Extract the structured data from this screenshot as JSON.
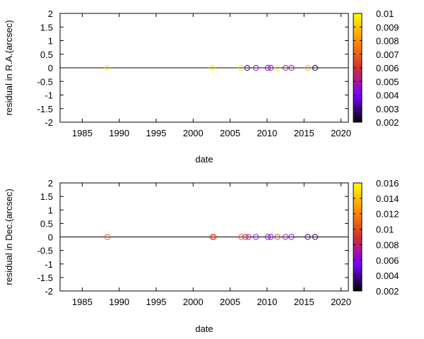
{
  "chart_data": [
    {
      "type": "scatter",
      "title": "",
      "xlabel": "date",
      "ylabel": "residual in R.A.(arcsec)",
      "xlim": [
        1982.0,
        2021.0
      ],
      "ylim": [
        -2,
        2
      ],
      "x_ticks": [
        "1985",
        "1990",
        "1995",
        "2000",
        "2005",
        "2010",
        "2015",
        "2020"
      ],
      "y_ticks": [
        "2",
        "1.5",
        "1",
        "0.5",
        "0",
        "-0.5",
        "-1",
        "-1.5",
        "-2"
      ],
      "grid": false,
      "colorbar": {
        "range": [
          0.002,
          0.01
        ],
        "ticks": [
          "0.01",
          "0.009",
          "0.008",
          "0.007",
          "0.006",
          "0.005",
          "0.004",
          "0.003",
          "0.002"
        ],
        "palette": [
          "#000000",
          "#7a00ff",
          "#d23030",
          "#ff9000",
          "#ffff00"
        ]
      },
      "points": [
        {
          "x": 1988.4,
          "y": 0,
          "c": 0.0098
        },
        {
          "x": 2002.6,
          "y": 0,
          "c": 0.0098
        },
        {
          "x": 2006.5,
          "y": 0,
          "c": 0.0097
        },
        {
          "x": 2007.3,
          "y": 0,
          "c": 0.003
        },
        {
          "x": 2008.5,
          "y": 0,
          "c": 0.0045
        },
        {
          "x": 2010.1,
          "y": 0,
          "c": 0.0045
        },
        {
          "x": 2010.5,
          "y": 0,
          "c": 0.0045
        },
        {
          "x": 2011.4,
          "y": 0,
          "c": 0.0098
        },
        {
          "x": 2012.5,
          "y": 0,
          "c": 0.005
        },
        {
          "x": 2013.3,
          "y": 0,
          "c": 0.0045
        },
        {
          "x": 2015.5,
          "y": 0,
          "c": 0.0085
        },
        {
          "x": 2016.5,
          "y": 0,
          "c": 0.0025
        }
      ]
    },
    {
      "type": "scatter",
      "title": "",
      "xlabel": "date",
      "ylabel": "residual in Dec.(arcsec)",
      "xlim": [
        1982.0,
        2021.0
      ],
      "ylim": [
        -2,
        2
      ],
      "x_ticks": [
        "1985",
        "1990",
        "1995",
        "2000",
        "2005",
        "2010",
        "2015",
        "2020"
      ],
      "y_ticks": [
        "2",
        "1.5",
        "1",
        "0.5",
        "0",
        "-0.5",
        "-1",
        "-1.5",
        "-2"
      ],
      "grid": false,
      "colorbar": {
        "range": [
          0.002,
          0.016
        ],
        "ticks": [
          "0.016",
          "0.014",
          "0.012",
          "0.01",
          "0.008",
          "0.006",
          "0.004",
          "0.002"
        ],
        "palette": [
          "#000000",
          "#7a00ff",
          "#d23030",
          "#ff9000",
          "#ffff00"
        ]
      },
      "points": [
        {
          "x": 1988.4,
          "y": 0,
          "c": 0.0105
        },
        {
          "x": 2002.6,
          "y": 0,
          "c": 0.0095
        },
        {
          "x": 2002.8,
          "y": 0,
          "c": 0.0095
        },
        {
          "x": 2006.5,
          "y": 0,
          "c": 0.0105
        },
        {
          "x": 2007.1,
          "y": 0,
          "c": 0.008
        },
        {
          "x": 2007.5,
          "y": 0,
          "c": 0.008
        },
        {
          "x": 2008.5,
          "y": 0,
          "c": 0.006
        },
        {
          "x": 2010.1,
          "y": 0,
          "c": 0.006
        },
        {
          "x": 2010.5,
          "y": 0,
          "c": 0.006
        },
        {
          "x": 2011.4,
          "y": 0,
          "c": 0.0095
        },
        {
          "x": 2012.5,
          "y": 0,
          "c": 0.007
        },
        {
          "x": 2013.3,
          "y": 0,
          "c": 0.006
        },
        {
          "x": 2015.5,
          "y": 0,
          "c": 0.0035
        },
        {
          "x": 2016.5,
          "y": 0,
          "c": 0.003
        }
      ]
    }
  ]
}
